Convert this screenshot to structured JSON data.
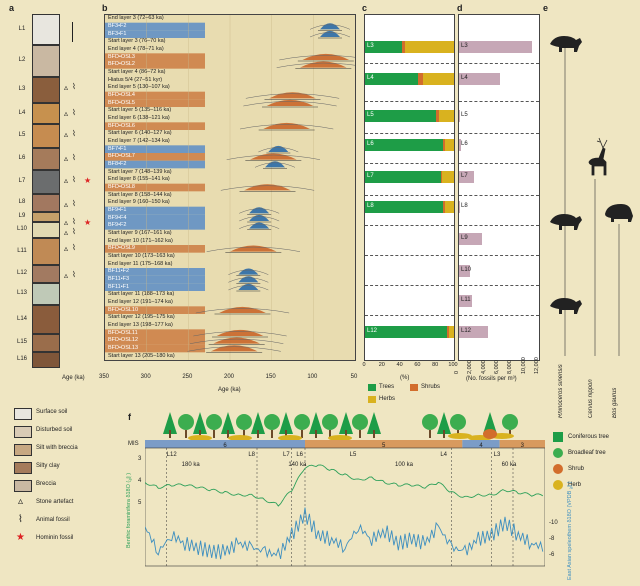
{
  "panels": {
    "a": "a",
    "b": "b",
    "c": "c",
    "d": "d",
    "e": "e",
    "f": "f"
  },
  "colors": {
    "background": "#efe6c2",
    "blue_band": "#6f98c3",
    "orange_band": "#d08a52",
    "trees": "#1e9d47",
    "shrubs": "#d26d2c",
    "herbs": "#d9b21f",
    "fossils": "#c6a7b6",
    "benthic": "#2ea05a",
    "speleothem": "#3e8fc0",
    "mis_cold": "#7b9cc7",
    "mis_warm": "#d89a5e"
  },
  "layers": [
    "L1",
    "L2",
    "L3",
    "L4",
    "L5",
    "L6",
    "L7",
    "L8",
    "L9",
    "L10",
    "L11",
    "L12",
    "L13",
    "L14",
    "L15",
    "L16"
  ],
  "panel_a": {
    "axis_label": "Age (ka)"
  },
  "panel_b": {
    "axis_label": "Age (ka)",
    "ticks": [
      "350",
      "300",
      "250",
      "200",
      "150",
      "100",
      "50"
    ],
    "entries": [
      {
        "text": "End layer 3 (72–63 ka)",
        "type": "bound"
      },
      {
        "text": "BF3•F2",
        "type": "sample"
      },
      {
        "text": "BF3•F1",
        "type": "sample"
      },
      {
        "text": "Start layer 3 (76–70 ka)",
        "type": "bound"
      },
      {
        "text": "End layer 4 (78–71 ka)",
        "type": "bound"
      },
      {
        "text": "BFD•OSL3",
        "type": "sample"
      },
      {
        "text": "BFD•OSL2",
        "type": "sample"
      },
      {
        "text": "Start layer 4 (86–72 ka)",
        "type": "bound"
      },
      {
        "text": "Hiatus 5/4 (27–51 kyr)",
        "type": "bound"
      },
      {
        "text": "End layer 5 (130–107 ka)",
        "type": "bound"
      },
      {
        "text": "BFD•OSL4",
        "type": "sample"
      },
      {
        "text": "BFD•OSL5",
        "type": "sample"
      },
      {
        "text": "Start layer 5 (135–116 ka)",
        "type": "bound"
      },
      {
        "text": "End layer 6 (138–121 ka)",
        "type": "bound"
      },
      {
        "text": "BFD•OSL6",
        "type": "sample"
      },
      {
        "text": "Start layer 6 (140–127 ka)",
        "type": "bound"
      },
      {
        "text": "End layer 7 (142–134 ka)",
        "type": "bound"
      },
      {
        "text": "BF7•F1",
        "type": "sample"
      },
      {
        "text": "BFD•OSL7",
        "type": "sample"
      },
      {
        "text": "BF8•F2",
        "type": "sample"
      },
      {
        "text": "Start layer 7 (148–139 ka)",
        "type": "bound"
      },
      {
        "text": "End layer 8 (155–141 ka)",
        "type": "bound"
      },
      {
        "text": "BFD•OSL8",
        "type": "sample"
      },
      {
        "text": "Start layer 8 (158–144 ka)",
        "type": "bound"
      },
      {
        "text": "End layer 9 (160–150 ka)",
        "type": "bound"
      },
      {
        "text": "BF9•F1",
        "type": "sample"
      },
      {
        "text": "BF9•F4",
        "type": "sample"
      },
      {
        "text": "BF9•F2",
        "type": "sample"
      },
      {
        "text": "Start layer 9 (167–161 ka)",
        "type": "bound"
      },
      {
        "text": "End layer 10 (171–162 ka)",
        "type": "bound"
      },
      {
        "text": "BFD•OSL9",
        "type": "sample"
      },
      {
        "text": "Start layer 10 (173–163 ka)",
        "type": "bound"
      },
      {
        "text": "End layer 11 (175–168 ka)",
        "type": "bound"
      },
      {
        "text": "BF11•F2",
        "type": "sample"
      },
      {
        "text": "BF11•F3",
        "type": "sample"
      },
      {
        "text": "BF11•F1",
        "type": "sample"
      },
      {
        "text": "Start layer 11 (188–173 ka)",
        "type": "bound"
      },
      {
        "text": "End layer 12 (191–174 ka)",
        "type": "bound"
      },
      {
        "text": "BFD•OSL10",
        "type": "sample"
      },
      {
        "text": "Start layer 12 (195–175 ka)",
        "type": "bound"
      },
      {
        "text": "End layer 13 (198–177 ka)",
        "type": "bound"
      },
      {
        "text": "BFD•OSL11",
        "type": "sample"
      },
      {
        "text": "BFD•OSL12",
        "type": "sample"
      },
      {
        "text": "BFD•OSL13",
        "type": "sample"
      },
      {
        "text": "Start layer 13 (205–180 ka)",
        "type": "bound"
      }
    ]
  },
  "chart_data": [
    {
      "type": "bar",
      "panel": "c",
      "xlabel": "(%)",
      "xlim": [
        0,
        100
      ],
      "ticks": [
        "0",
        "20",
        "40",
        "60",
        "80",
        "100"
      ],
      "categories": [
        "L3",
        "L4",
        "L5",
        "L6",
        "L7",
        "L8",
        "L12"
      ],
      "series": [
        {
          "name": "Trees",
          "values": [
            42,
            60,
            80,
            88,
            85,
            88,
            92
          ]
        },
        {
          "name": "Shrubs",
          "values": [
            3,
            5,
            3,
            2,
            2,
            2,
            2
          ]
        },
        {
          "name": "Herbs",
          "values": [
            55,
            35,
            17,
            10,
            13,
            10,
            6
          ]
        }
      ],
      "legend": [
        "Trees",
        "Shrubs",
        "Herbs"
      ]
    },
    {
      "type": "bar",
      "panel": "d",
      "xlabel": "(No. fossils per m³)",
      "xlim": [
        0,
        12000
      ],
      "ticks": [
        "0",
        "2,000",
        "4,000",
        "6,000",
        "8,000",
        "10,000",
        "12,000"
      ],
      "categories": [
        "L3",
        "L4",
        "L5",
        "L6",
        "L7",
        "L8",
        "L9",
        "L10",
        "L11",
        "L12"
      ],
      "values": [
        11000,
        6200,
        200,
        300,
        2200,
        200,
        3400,
        1600,
        2000,
        4400
      ]
    },
    {
      "type": "line",
      "panel": "f",
      "xlim": [
        190,
        40
      ],
      "x": [
        190,
        185,
        180,
        175,
        170,
        165,
        160,
        155,
        150,
        145,
        140,
        135,
        130,
        125,
        120,
        115,
        110,
        105,
        100,
        95,
        90,
        85,
        80,
        75,
        70,
        65,
        60,
        55,
        50,
        45,
        40
      ],
      "series": [
        {
          "name": "Benthic foraminifera δ18O (‰)",
          "values": [
            3.9,
            4.1,
            4.0,
            4.0,
            4.1,
            4.2,
            4.3,
            4.4,
            4.4,
            4.6,
            4.8,
            4.2,
            3.3,
            3.2,
            3.4,
            3.6,
            3.8,
            3.7,
            3.9,
            4.0,
            4.0,
            4.1,
            3.9,
            4.3,
            4.5,
            4.4,
            4.4,
            4.2,
            4.3,
            4.4,
            4.4
          ]
        },
        {
          "name": "East Asian speleothem δ18O (VPDB ‰)",
          "values": [
            -9,
            -6,
            -8,
            -7,
            -6.5,
            -6,
            -6,
            -7,
            -6.5,
            -6,
            -5.5,
            -8,
            -10.5,
            -8,
            -7.5,
            -6.5,
            -9,
            -7.5,
            -8.5,
            -7,
            -7.5,
            -7,
            -9,
            -6.5,
            -6,
            -7.5,
            -8,
            -9.5,
            -8,
            -7,
            -6.5
          ]
        }
      ],
      "ylabel_left": "Benthic foraminifera δ18O (‰)",
      "ylabel_right": "East Asian speleothem δ18O (VPDB ‰)",
      "ticks_left": [
        "3",
        "4",
        "5"
      ],
      "ticks_right": [
        "-10",
        "-8",
        "-6"
      ]
    }
  ],
  "panel_e": {
    "species": [
      "Rhinoceros sinensis",
      "Cervus nippon",
      "Bos gaurus"
    ]
  },
  "legend_a": [
    {
      "label": "Surface soil",
      "icon": "surface-soil-swatch"
    },
    {
      "label": "Disturbed soil",
      "icon": "disturbed-soil-swatch"
    },
    {
      "label": "Silt with breccia",
      "icon": "silt-breccia-swatch"
    },
    {
      "label": "Silty clay",
      "icon": "silty-clay-swatch"
    },
    {
      "label": "Breccia",
      "icon": "breccia-swatch"
    },
    {
      "label": "Stone artefact",
      "icon": "stone-artefact-icon"
    },
    {
      "label": "Animal fossil",
      "icon": "animal-fossil-icon"
    },
    {
      "label": "Hominin fossil",
      "icon": "hominin-fossil-star-icon"
    }
  ],
  "panel_f": {
    "mis_label": "MIS",
    "mis": [
      {
        "label": "7",
        "kind": "warm"
      },
      {
        "label": "6",
        "kind": "cold"
      },
      {
        "label": "5",
        "kind": "warm"
      },
      {
        "label": "4",
        "kind": "cold"
      },
      {
        "label": "3",
        "kind": "warm"
      }
    ],
    "layer_marks": [
      "L12",
      "L8",
      "L7",
      "L6",
      "L5",
      "L4",
      "L3"
    ],
    "age_marks": [
      "180 ka",
      "140 ka",
      "100 ka",
      "60 ka"
    ],
    "veg_legend": [
      "Coniferous tree",
      "Broadleaf tree",
      "Shrub",
      "Herb"
    ]
  }
}
